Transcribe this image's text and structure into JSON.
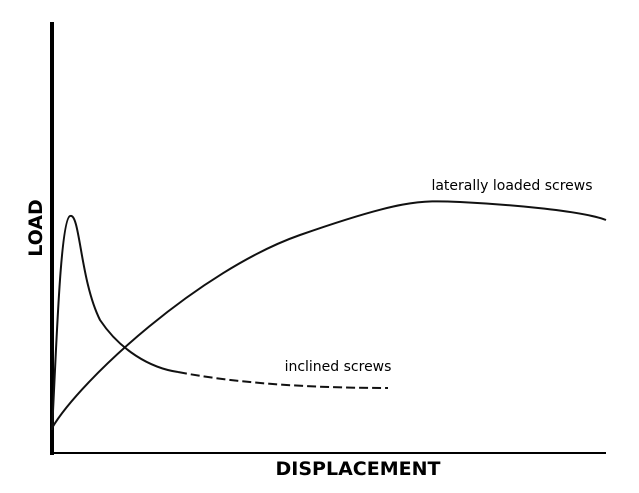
{
  "axes": {
    "y_label": "LOAD",
    "x_label": "DISPLACEMENT"
  },
  "curves": [
    {
      "label": "laterally loaded screws"
    },
    {
      "label": "inclined screws"
    }
  ]
}
